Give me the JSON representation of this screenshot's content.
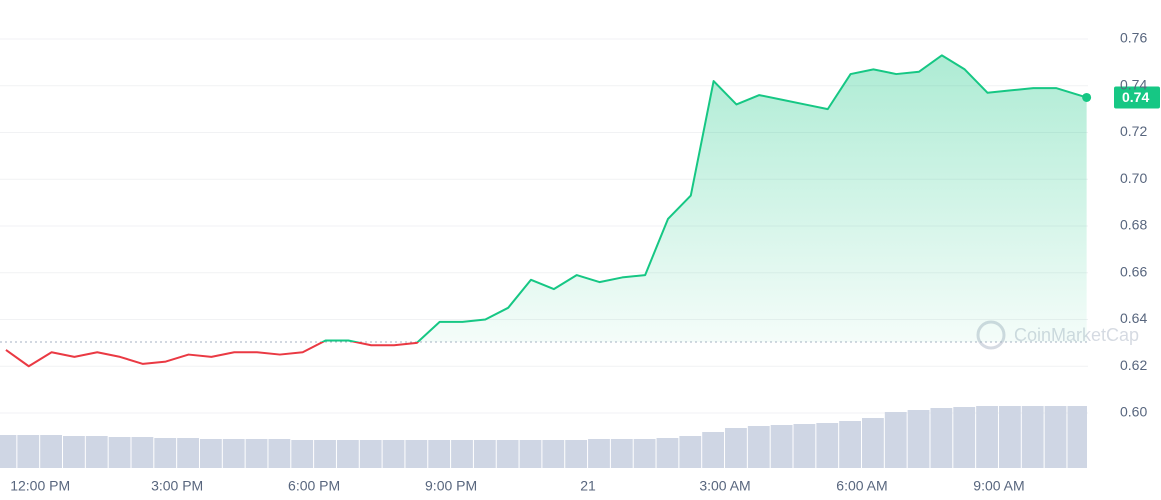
{
  "chart_data": {
    "type": "line",
    "x": [
      11.25,
      11.75,
      12.25,
      12.75,
      13.25,
      13.75,
      14.25,
      14.75,
      15.25,
      15.75,
      16.25,
      16.75,
      17.25,
      17.75,
      18.25,
      18.75,
      19.25,
      19.75,
      20.25,
      20.75,
      21.25,
      21.75,
      22.25,
      22.75,
      23.25,
      23.75,
      24.25,
      24.75,
      25.25,
      25.75,
      26.25,
      26.75,
      27.25,
      27.75,
      28.25,
      28.75,
      29.25,
      29.75,
      30.25,
      30.75,
      31.25,
      31.75,
      32.25,
      32.75,
      33.25,
      33.75,
      34.25,
      34.75,
      34.92
    ],
    "series": [
      {
        "color": "#16c784",
        "below_color": "#ea3943",
        "values": [
          0.627,
          0.62,
          0.626,
          0.624,
          0.626,
          0.624,
          0.621,
          0.622,
          0.625,
          0.624,
          0.626,
          0.626,
          0.625,
          0.626,
          0.631,
          0.631,
          0.629,
          0.629,
          0.63,
          0.639,
          0.639,
          0.64,
          0.645,
          0.657,
          0.653,
          0.659,
          0.656,
          0.658,
          0.659,
          0.683,
          0.693,
          0.742,
          0.732,
          0.736,
          0.734,
          0.732,
          0.73,
          0.745,
          0.747,
          0.745,
          0.746,
          0.753,
          0.747,
          0.737,
          0.738,
          0.739,
          0.739,
          0.736,
          0.735
        ]
      }
    ],
    "baseline": 0.6304,
    "current_price_label": "0.74",
    "volume": {
      "color": "#cfd6e4",
      "values": [
        33,
        33,
        33,
        32,
        32,
        31,
        31,
        30,
        30,
        29,
        29,
        29,
        29,
        28,
        28,
        28,
        28,
        28,
        28,
        28,
        28,
        28,
        28,
        28,
        28,
        28,
        29,
        29,
        29,
        30,
        32,
        36,
        40,
        42,
        43,
        44,
        45,
        47,
        50,
        56,
        58,
        60,
        61,
        62,
        62,
        62,
        62,
        62,
        62
      ],
      "y2lim": [
        0,
        100
      ]
    },
    "xlim": [
      11.12,
      34.95
    ],
    "xticks": [
      {
        "value": 12,
        "label": "12:00 PM"
      },
      {
        "value": 15,
        "label": "3:00 PM"
      },
      {
        "value": 18,
        "label": "6:00 PM"
      },
      {
        "value": 21,
        "label": "9:00 PM"
      },
      {
        "value": 24,
        "label": "21"
      },
      {
        "value": 27,
        "label": "3:00 AM"
      },
      {
        "value": 30,
        "label": "6:00 AM"
      },
      {
        "value": 33,
        "label": "9:00 AM"
      }
    ],
    "ylim": [
      0.58,
      0.78
    ],
    "yticks": [
      {
        "value": 0.6,
        "label": "0.60"
      },
      0.62,
      0.64,
      0.66,
      0.68,
      {
        "value": 0.7,
        "label": "0.70"
      },
      0.72,
      0.74,
      0.76
    ],
    "grid": true,
    "watermark": "CoinMarketCap"
  }
}
